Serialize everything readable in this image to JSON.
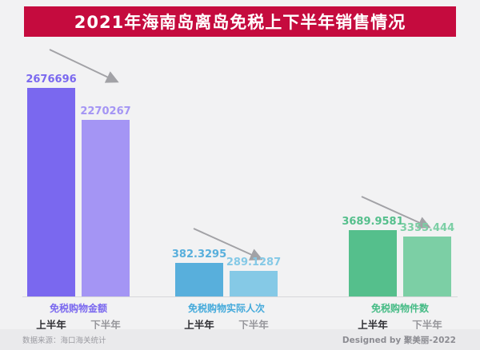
{
  "title": "2021年海南岛离岛免税上下半年销售情况",
  "footer": {
    "source": "数据来源：海口海关统计",
    "credit": "Designed by 聚美丽-2022"
  },
  "colors": {
    "title_bg": "#C50B3E",
    "title_text": "#FFFFFF",
    "background": "#F2F2F3",
    "arrow": "#A2A2A6",
    "baseline": "#D7D7DA"
  },
  "chart_data": {
    "type": "bar",
    "title": "2021年海南岛离岛免税上下半年销售情况",
    "categories": [
      "上半年",
      "下半年"
    ],
    "grid": false,
    "legend_position": "none",
    "trend_annotation": "declining-arrow-per-group",
    "groups": [
      {
        "label": "免税购物金额",
        "label_color": "#7A68EF",
        "categories": [
          "上半年",
          "下半年"
        ],
        "values": [
          2676696,
          2270267
        ],
        "display_values": [
          "2676696",
          "2270267"
        ],
        "bar_colors": [
          "#7A68EF",
          "#A495F4"
        ]
      },
      {
        "label": "免税购物实际人次",
        "label_color": "#45AADB",
        "categories": [
          "上半年",
          "下半年"
        ],
        "values": [
          382.3295,
          289.1287
        ],
        "display_values": [
          "382.3295",
          "289.1287"
        ],
        "bar_colors": [
          "#58AFDC",
          "#85C9E6"
        ]
      },
      {
        "label": "免税购物件数",
        "label_color": "#45BB85",
        "categories": [
          "上半年",
          "下半年"
        ],
        "values": [
          3689.9581,
          3355.444
        ],
        "display_values": [
          "3689.9581",
          "3355.444"
        ],
        "bar_colors": [
          "#55BF8C",
          "#7CCFA5"
        ]
      }
    ]
  }
}
